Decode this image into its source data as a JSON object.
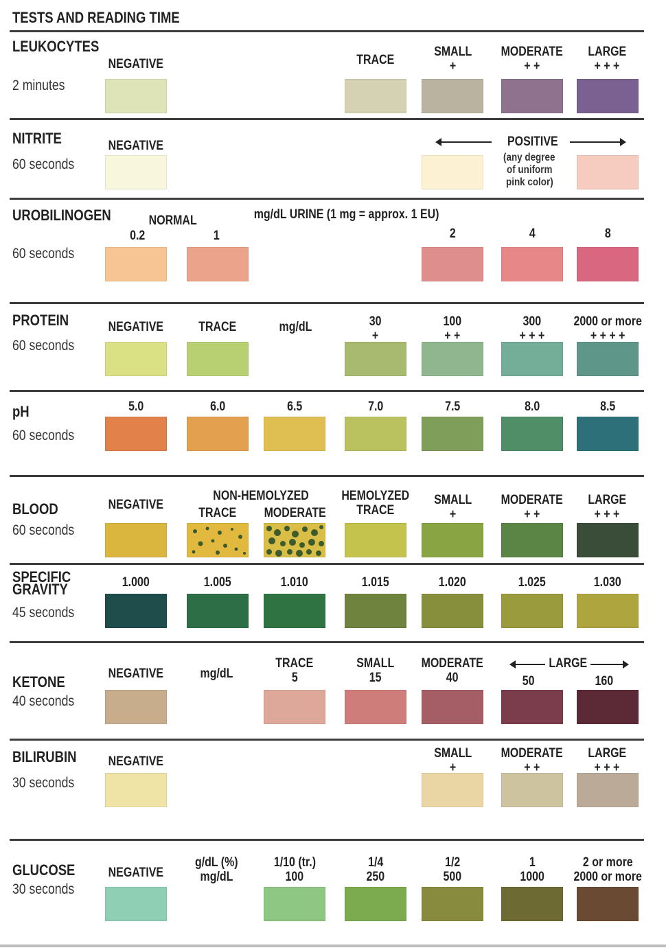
{
  "header": {
    "title": "TESTS AND READING TIME"
  },
  "leukocytes": {
    "name": "LEUKOCYTES",
    "time": "2 minutes",
    "labels": {
      "negative": "NEGATIVE",
      "trace": "TRACE",
      "small": "SMALL",
      "small_sym": "+",
      "moderate": "MODERATE",
      "moderate_sym": "+ +",
      "large": "LARGE",
      "large_sym": "+ + +"
    },
    "colors": [
      "#dfe4b8",
      "#d5d2b3",
      "#b9b39f",
      "#8e728e",
      "#7a6191"
    ]
  },
  "nitrite": {
    "name": "NITRITE",
    "time": "60 seconds",
    "labels": {
      "negative": "NEGATIVE",
      "positive": "POSITIVE",
      "note_1": "(any degree",
      "note_2": "of uniform",
      "note_3": "pink color)"
    },
    "colors": [
      "#f8f7dd",
      "#fdf1d4",
      "#f6ccc1"
    ]
  },
  "urobilinogen": {
    "name": "UROBILINOGEN",
    "time": "60 seconds",
    "labels": {
      "normal": "NORMAL",
      "unit": "mg/dL URINE (1 mg = approx. 1 EU)",
      "v02": "0.2",
      "v1": "1",
      "v2": "2",
      "v4": "4",
      "v8": "8"
    },
    "colors": [
      "#f6c593",
      "#eba38b",
      "#de8e8c",
      "#e88788",
      "#d9677f"
    ]
  },
  "protein": {
    "name": "PROTEIN",
    "time": "60 seconds",
    "labels": {
      "negative": "NEGATIVE",
      "trace": "TRACE",
      "unit": "mg/dL",
      "v30": "30",
      "v30_sym": "+",
      "v100": "100",
      "v100_sym": "+ +",
      "v300": "300",
      "v300_sym": "+ + +",
      "v2000": "2000 or more",
      "v2000_sym": "+ + + +"
    },
    "colors": [
      "#d9e184",
      "#b8d072",
      "#a8ba70",
      "#8fb68f",
      "#74ad98",
      "#5e9689"
    ]
  },
  "ph": {
    "name": "pH",
    "time": "60 seconds",
    "values": [
      "5.0",
      "6.0",
      "6.5",
      "7.0",
      "7.5",
      "8.0",
      "8.5"
    ],
    "colors": [
      "#e2814a",
      "#e3a04f",
      "#dfbf52",
      "#b9c25f",
      "#7f9e5a",
      "#4f8e67",
      "#2e7079"
    ]
  },
  "blood": {
    "name": "BLOOD",
    "time": "60 seconds",
    "labels": {
      "negative": "NEGATIVE",
      "non_hemolyzed": "NON-HEMOLYZED",
      "trace": "TRACE",
      "moderate": "MODERATE",
      "hemolyzed": "HEMOLYZED",
      "hemolyzed_trace": "TRACE",
      "small": "SMALL",
      "small_sym": "+",
      "moderate2": "MODERATE",
      "moderate2_sym": "+ +",
      "large": "LARGE",
      "large_sym": "+ + +"
    },
    "colors": [
      "#dbb63e",
      "#e2b93f",
      "#d8bd46",
      "#c4c34e",
      "#89a443",
      "#5a8544",
      "#3a4d38"
    ],
    "speck_color": "#3d5a2c"
  },
  "specific_gravity": {
    "name_1": "SPECIFIC",
    "name_2": "GRAVITY",
    "time": "45 seconds",
    "values": [
      "1.000",
      "1.005",
      "1.010",
      "1.015",
      "1.020",
      "1.025",
      "1.030"
    ],
    "colors": [
      "#1e4d4b",
      "#2e6e47",
      "#2f7343",
      "#6f833e",
      "#878f3d",
      "#999b3d",
      "#aea53e"
    ]
  },
  "ketone": {
    "name": "KETONE",
    "time": "40 seconds",
    "labels": {
      "negative": "NEGATIVE",
      "unit": "mg/dL",
      "trace": "TRACE",
      "trace_val": "5",
      "small": "SMALL",
      "small_val": "15",
      "moderate": "MODERATE",
      "moderate_val": "40",
      "large": "LARGE",
      "large_val_1": "50",
      "large_val_2": "160"
    },
    "colors": [
      "#c7ad8c",
      "#dda799",
      "#cf7d7b",
      "#a55e66",
      "#7b3c4b",
      "#5c2a36"
    ]
  },
  "bilirubin": {
    "name": "BILIRUBIN",
    "time": "30 seconds",
    "labels": {
      "negative": "NEGATIVE",
      "small": "SMALL",
      "small_sym": "+",
      "moderate": "MODERATE",
      "moderate_sym": "+ +",
      "large": "LARGE",
      "large_sym": "+ + +"
    },
    "colors": [
      "#efe4a6",
      "#ead6a5",
      "#cec39f",
      "#bbaa97"
    ]
  },
  "glucose": {
    "name": "GLUCOSE",
    "time": "30 seconds",
    "labels": {
      "negative": "NEGATIVE",
      "unit_1": "g/dL (%)",
      "unit_2": "mg/dL",
      "c1_1": "1/10 (tr.)",
      "c1_2": "100",
      "c2_1": "1/4",
      "c2_2": "250",
      "c3_1": "1/2",
      "c3_2": "500",
      "c4_1": "1",
      "c4_2": "1000",
      "c5_1": "2 or more",
      "c5_2": "2000 or more"
    },
    "colors": [
      "#8fd0b5",
      "#8ec684",
      "#7bab4e",
      "#888b3e",
      "#6e6a33",
      "#6b4a34"
    ]
  }
}
